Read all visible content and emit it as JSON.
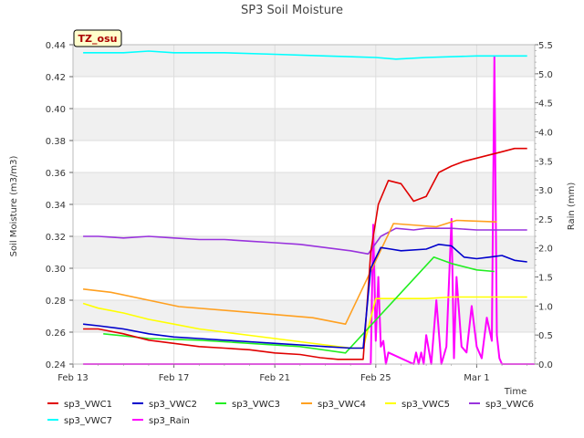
{
  "chart_data": {
    "type": "line",
    "title": "SP3 Soil Moisture",
    "badge": "TZ_osu",
    "xlabel": "Time",
    "ylabel": "Soil Moisture (m3/m3)",
    "y2label": "Rain (mm)",
    "x_ticks": [
      "Feb 13",
      "Feb 17",
      "Feb 21",
      "Feb 25",
      "Mar 1"
    ],
    "xlim": [
      0,
      18.3
    ],
    "ylim": [
      0.24,
      0.44
    ],
    "y_ticks": [
      "0.24",
      "0.26",
      "0.28",
      "0.30",
      "0.32",
      "0.34",
      "0.36",
      "0.38",
      "0.40",
      "0.42",
      "0.44"
    ],
    "y2lim": [
      0,
      5.5
    ],
    "y2_ticks": [
      "0.0",
      "0.5",
      "1.0",
      "1.5",
      "2.0",
      "2.5",
      "3.0",
      "3.5",
      "4.0",
      "4.5",
      "5.0",
      "5.5"
    ],
    "grid": true,
    "legend_position": "bottom",
    "x_note": "x values in days since Feb 13",
    "series": [
      {
        "name": "sp3_VWC1",
        "color": "#e00000",
        "axis": "left",
        "x": [
          0.4,
          1,
          2,
          3,
          4,
          5,
          6,
          7,
          8,
          9,
          9.8,
          10.5,
          11.5,
          11.8,
          12.1,
          12.5,
          13,
          13.5,
          14,
          14.5,
          15,
          15.5,
          16,
          16.5,
          17,
          17.5,
          18
        ],
        "y": [
          0.262,
          0.262,
          0.259,
          0.255,
          0.253,
          0.251,
          0.25,
          0.249,
          0.247,
          0.246,
          0.244,
          0.243,
          0.243,
          0.31,
          0.34,
          0.355,
          0.353,
          0.342,
          0.345,
          0.36,
          0.364,
          0.367,
          0.369,
          0.371,
          0.373,
          0.375,
          0.375
        ]
      },
      {
        "name": "sp3_VWC2",
        "color": "#0000cc",
        "axis": "left",
        "x": [
          0.4,
          1,
          2,
          3,
          4,
          5,
          6,
          7,
          8,
          9,
          10,
          11,
          11.5,
          11.8,
          12.2,
          12.6,
          13,
          14,
          14.5,
          15,
          15.5,
          16,
          16.5,
          17,
          17.5,
          18
        ],
        "y": [
          0.265,
          0.264,
          0.262,
          0.259,
          0.257,
          0.256,
          0.255,
          0.254,
          0.253,
          0.252,
          0.251,
          0.25,
          0.25,
          0.3,
          0.313,
          0.312,
          0.311,
          0.312,
          0.315,
          0.314,
          0.307,
          0.306,
          0.307,
          0.308,
          0.305,
          0.304
        ]
      },
      {
        "name": "sp3_VWC3",
        "color": "#22ee22",
        "axis": "left",
        "x": [
          1.2,
          3,
          5,
          7,
          9,
          10.8,
          14.3,
          15,
          16,
          16.7
        ],
        "y": [
          0.259,
          0.256,
          0.255,
          0.253,
          0.251,
          0.247,
          0.307,
          0.303,
          0.299,
          0.298
        ]
      },
      {
        "name": "sp3_VWC4",
        "color": "#ffa020",
        "axis": "left",
        "x": [
          0.4,
          1.5,
          4.2,
          6.5,
          9.5,
          10.8,
          12.7,
          14.4,
          15.2,
          16.8
        ],
        "y": [
          0.287,
          0.285,
          0.276,
          0.273,
          0.269,
          0.265,
          0.328,
          0.326,
          0.33,
          0.329
        ]
      },
      {
        "name": "sp3_VWC5",
        "color": "#ffff00",
        "axis": "left",
        "x": [
          0.4,
          1,
          2,
          3,
          4,
          5,
          6,
          7,
          8,
          9,
          10,
          11,
          11.5,
          12,
          13,
          14,
          15,
          16,
          17,
          18
        ],
        "y": [
          0.278,
          0.275,
          0.272,
          0.268,
          0.265,
          0.262,
          0.26,
          0.258,
          0.256,
          0.254,
          0.252,
          0.25,
          0.25,
          0.281,
          0.281,
          0.281,
          0.282,
          0.282,
          0.282,
          0.282
        ]
      },
      {
        "name": "sp3_VWC6",
        "color": "#9933dd",
        "axis": "left",
        "x": [
          0.4,
          1,
          2,
          3,
          4,
          5,
          6,
          7,
          8,
          9,
          10,
          11,
          11.7,
          12.2,
          12.8,
          13.5,
          14,
          15,
          16,
          17,
          18
        ],
        "y": [
          0.32,
          0.32,
          0.319,
          0.32,
          0.319,
          0.318,
          0.318,
          0.317,
          0.316,
          0.315,
          0.313,
          0.311,
          0.309,
          0.32,
          0.325,
          0.324,
          0.325,
          0.325,
          0.324,
          0.324,
          0.324
        ]
      },
      {
        "name": "sp3_VWC7",
        "color": "#00ffff",
        "axis": "left",
        "x": [
          0.4,
          2,
          3,
          4,
          6,
          8,
          10,
          12,
          12.8,
          14,
          16,
          18
        ],
        "y": [
          0.435,
          0.435,
          0.436,
          0.435,
          0.435,
          0.434,
          0.433,
          0.432,
          0.431,
          0.432,
          0.433,
          0.433
        ]
      },
      {
        "name": "sp3_Rain",
        "color": "#ff00ff",
        "axis": "right",
        "x": [
          0.4,
          11.8,
          11.9,
          12.0,
          12.1,
          12.2,
          12.3,
          12.4,
          12.5,
          13.5,
          13.6,
          13.7,
          13.8,
          13.9,
          14.0,
          14.2,
          14.4,
          14.6,
          14.8,
          15.0,
          15.1,
          15.2,
          15.4,
          15.6,
          15.8,
          16.0,
          16.2,
          16.4,
          16.6,
          16.7,
          16.8,
          16.9,
          17.0,
          18.3
        ],
        "y": [
          0,
          0,
          2.4,
          0.4,
          1.5,
          0.3,
          0.4,
          0,
          0.2,
          0,
          0.2,
          0,
          0.2,
          0,
          0.5,
          0,
          1.1,
          0,
          0.3,
          2.5,
          0.1,
          1.5,
          0.3,
          0.2,
          1.0,
          0.3,
          0.1,
          0.8,
          0.4,
          5.3,
          0.5,
          0.1,
          0,
          0
        ]
      }
    ]
  }
}
